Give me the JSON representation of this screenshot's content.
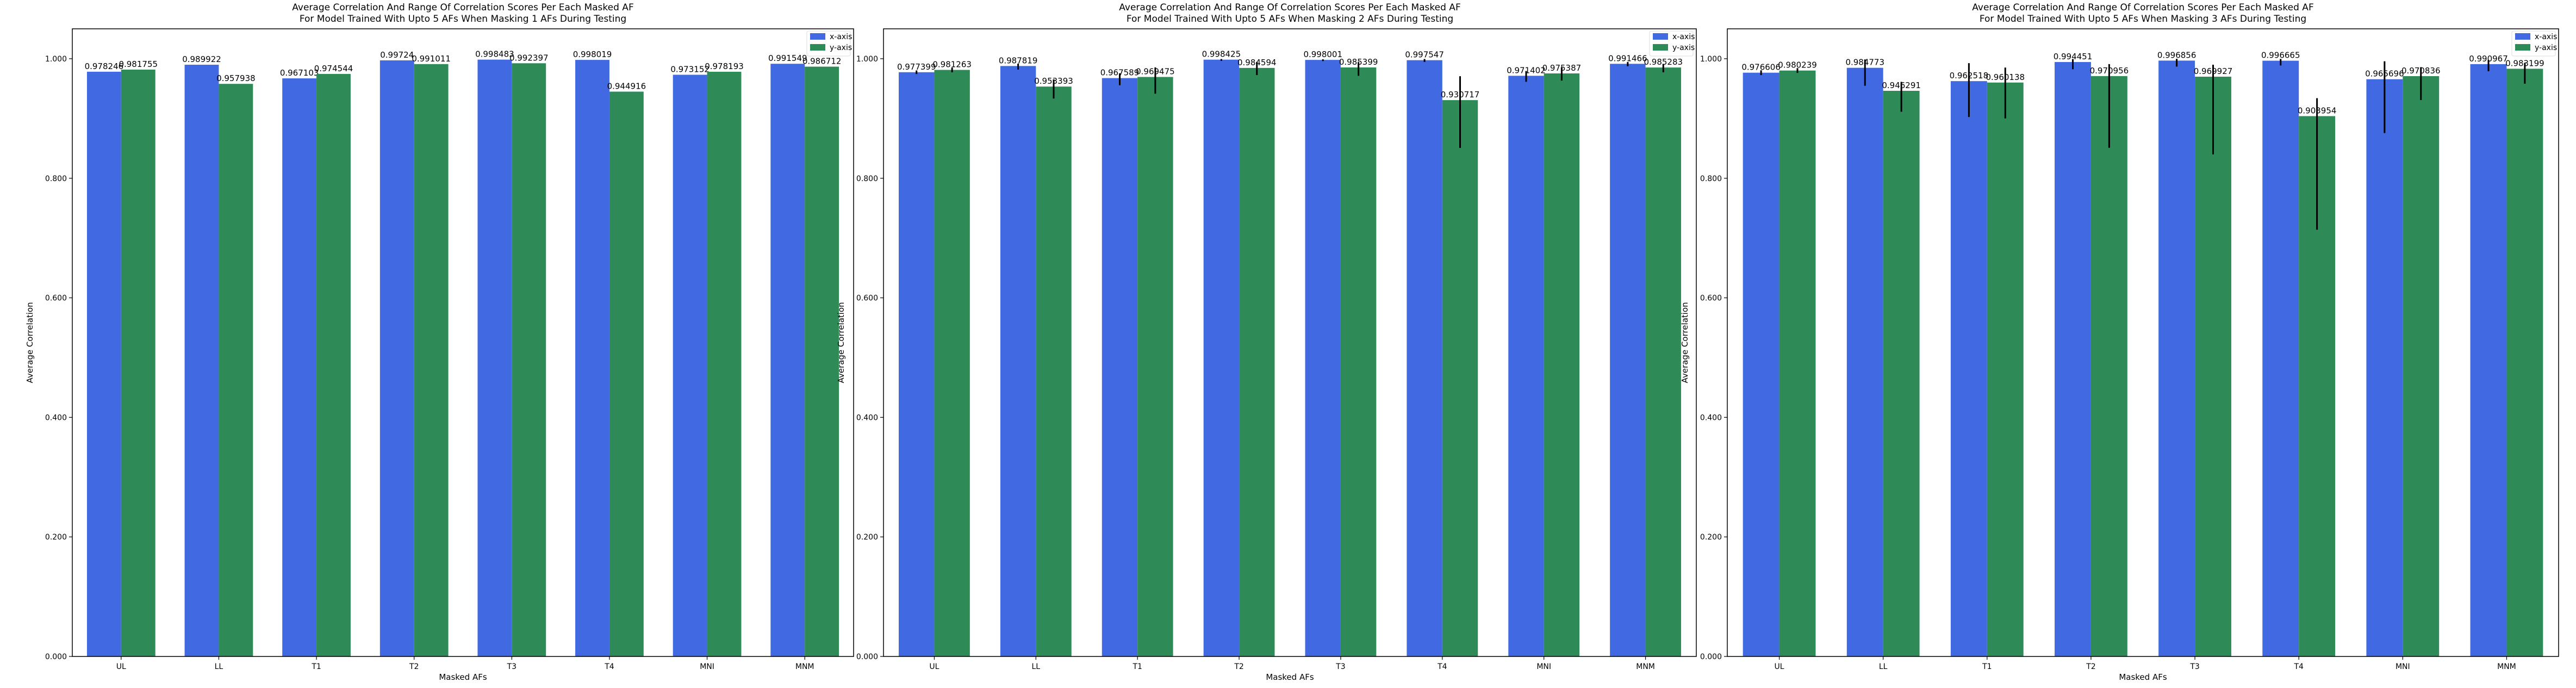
{
  "colors": {
    "x_axis": "#4169e1",
    "y_axis": "#2e8b57",
    "error_bar": "#000000"
  },
  "chart_data": [
    {
      "type": "bar",
      "title_line1": "Average Correlation And Range Of Correlation Scores Per Each Masked AF",
      "title_line2": "For Model Trained With Upto 5 AFs When Masking 1 AFs During Testing",
      "xlabel": "Masked AFs",
      "ylabel": "Average Correlation",
      "ylim": [
        0,
        1.05
      ],
      "yticks": [
        "0.000",
        "0.200",
        "0.400",
        "0.600",
        "0.800",
        "1.000"
      ],
      "legend_position": "top-right",
      "categories": [
        "UL",
        "LL",
        "T1",
        "T2",
        "T3",
        "T4",
        "MNI",
        "MNM"
      ],
      "series": [
        {
          "name": "x-axis",
          "color_key": "x_axis",
          "values": [
            0.978246,
            0.989922,
            0.967103,
            0.99724,
            0.998483,
            0.998019,
            0.973152,
            0.991549
          ],
          "labels": [
            "0.978246",
            "0.989922",
            "0.967103",
            "0.99724",
            "0.998483",
            "0.998019",
            "0.973152",
            "0.991549"
          ],
          "err_low": [
            0,
            0,
            0,
            0,
            0,
            0,
            0,
            0
          ],
          "err_high": [
            0,
            0,
            0,
            0,
            0,
            0,
            0,
            0
          ]
        },
        {
          "name": "y-axis",
          "color_key": "y_axis",
          "values": [
            0.981755,
            0.957938,
            0.974544,
            0.991011,
            0.992397,
            0.944916,
            0.978193,
            0.986712
          ],
          "labels": [
            "0.981755",
            "0.957938",
            "0.974544",
            "0.991011",
            "0.992397",
            "0.944916",
            "0.978193",
            "0.986712"
          ],
          "err_low": [
            0,
            0,
            0,
            0,
            0,
            0,
            0,
            0
          ],
          "err_high": [
            0,
            0,
            0,
            0,
            0,
            0,
            0,
            0
          ]
        }
      ]
    },
    {
      "type": "bar",
      "title_line1": "Average Correlation And Range Of Correlation Scores Per Each Masked AF",
      "title_line2": "For Model Trained With Upto 5 AFs When Masking 2 AFs During Testing",
      "xlabel": "Masked AFs",
      "ylabel": "Average Correlation",
      "ylim": [
        0,
        1.05
      ],
      "yticks": [
        "0.000",
        "0.200",
        "0.400",
        "0.600",
        "0.800",
        "1.000"
      ],
      "legend_position": "top-right",
      "categories": [
        "UL",
        "LL",
        "T1",
        "T2",
        "T3",
        "T4",
        "MNI",
        "MNM"
      ],
      "series": [
        {
          "name": "x-axis",
          "color_key": "x_axis",
          "values": [
            0.977399,
            0.987819,
            0.967589,
            0.998425,
            0.998001,
            0.997547,
            0.971402,
            0.991466
          ],
          "labels": [
            "0.977399",
            "0.987819",
            "0.967589",
            "0.998425",
            "0.998001",
            "0.997547",
            "0.971402",
            "0.991466"
          ],
          "err_low": [
            0.003,
            0.006,
            0.012,
            0.002,
            0.002,
            0.003,
            0.01,
            0.004
          ],
          "err_high": [
            0.003,
            0.004,
            0.008,
            0.001,
            0.001,
            0.002,
            0.008,
            0.003
          ]
        },
        {
          "name": "y-axis",
          "color_key": "y_axis",
          "values": [
            0.981263,
            0.953393,
            0.969475,
            0.984594,
            0.985399,
            0.930717,
            0.975387,
            0.985283
          ],
          "labels": [
            "0.981263",
            "0.953393",
            "0.969475",
            "0.984594",
            "0.985399",
            "0.930717",
            "0.975387",
            "0.985283"
          ],
          "err_low": [
            0.004,
            0.02,
            0.028,
            0.012,
            0.014,
            0.08,
            0.012,
            0.008
          ],
          "err_high": [
            0.004,
            0.012,
            0.016,
            0.01,
            0.009,
            0.04,
            0.01,
            0.006
          ]
        }
      ]
    },
    {
      "type": "bar",
      "title_line1": "Average Correlation And Range Of Correlation Scores Per Each Masked AF",
      "title_line2": "For Model Trained With Upto 5 AFs When Masking 3 AFs During Testing",
      "xlabel": "Masked AFs",
      "ylabel": "Average Correlation",
      "ylim": [
        0,
        1.05
      ],
      "yticks": [
        "0.000",
        "0.200",
        "0.400",
        "0.600",
        "0.800",
        "1.000"
      ],
      "legend_position": "top-right",
      "categories": [
        "UL",
        "LL",
        "T1",
        "T2",
        "T3",
        "T4",
        "MNI",
        "MNM"
      ],
      "series": [
        {
          "name": "x-axis",
          "color_key": "x_axis",
          "values": [
            0.976606,
            0.984773,
            0.962518,
            0.994451,
            0.996856,
            0.996665,
            0.965696,
            0.990967
          ],
          "labels": [
            "0.976606",
            "0.984773",
            "0.962518",
            "0.994451",
            "0.996856",
            "0.996665",
            "0.965696",
            "0.990967"
          ],
          "err_low": [
            0.004,
            0.03,
            0.06,
            0.012,
            0.01,
            0.008,
            0.09,
            0.012
          ],
          "err_high": [
            0.004,
            0.014,
            0.03,
            0.005,
            0.003,
            0.003,
            0.03,
            0.007
          ]
        },
        {
          "name": "y-axis",
          "color_key": "y_axis",
          "values": [
            0.980239,
            0.946291,
            0.960138,
            0.970956,
            0.969927,
            0.903954,
            0.970836,
            0.983199
          ],
          "labels": [
            "0.980239",
            "0.946291",
            "0.960138",
            "0.970956",
            "0.969927",
            "0.903954",
            "0.970836",
            "0.983199"
          ],
          "err_low": [
            0.004,
            0.035,
            0.06,
            0.12,
            0.13,
            0.19,
            0.04,
            0.025
          ],
          "err_high": [
            0.004,
            0.015,
            0.025,
            0.02,
            0.02,
            0.03,
            0.015,
            0.01
          ]
        }
      ]
    }
  ]
}
